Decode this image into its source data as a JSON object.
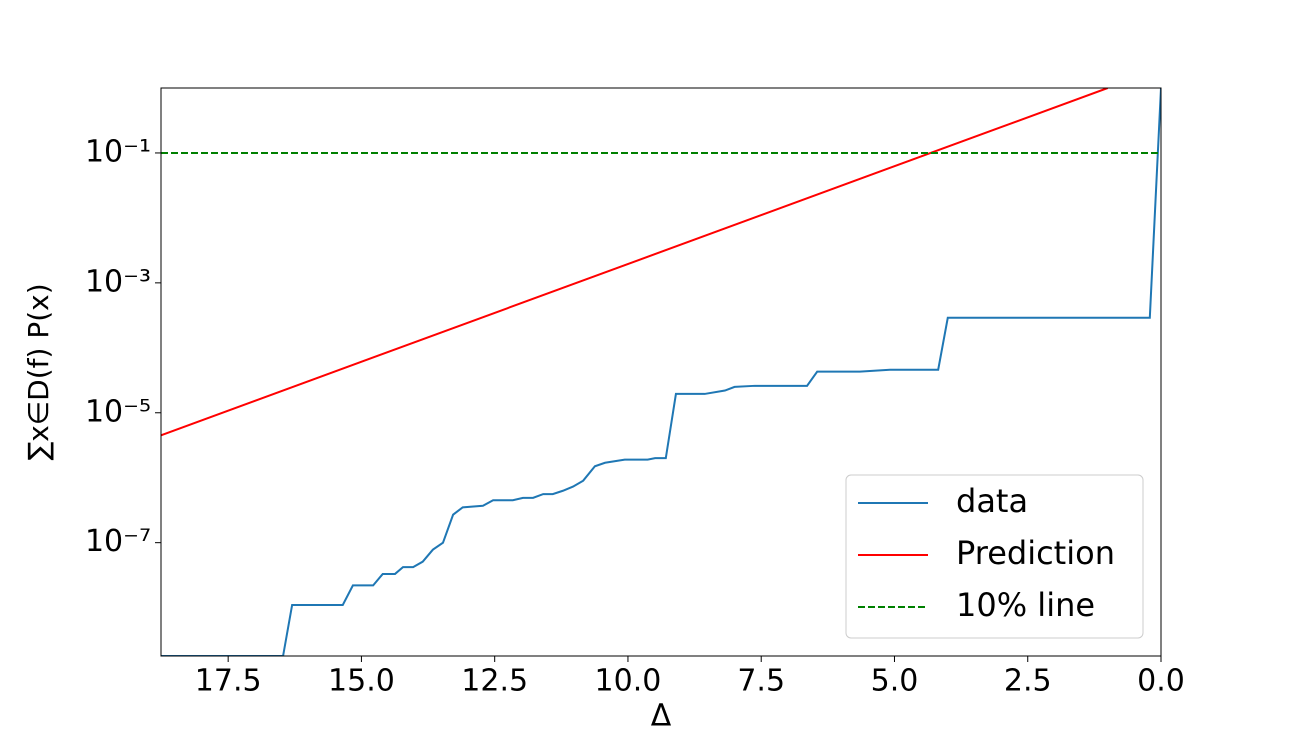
{
  "chart_data": {
    "type": "line",
    "x_label": "Δ",
    "y_label": "∑x∈D(f) P(x)",
    "log_y": true,
    "legend": "lower right",
    "xlim": [
      18.76,
      0
    ],
    "xticks": [
      17.5,
      {
        "value": 15,
        "label": "15.0"
      },
      12.5,
      {
        "value": 10,
        "label": "10.0"
      },
      7.5,
      {
        "value": 5,
        "label": "5.0"
      },
      2.5,
      {
        "value": 0,
        "label": "0.0"
      }
    ],
    "ylim": [
      1.8e-09,
      1
    ],
    "yticks": [
      {
        "value": 0.1,
        "label": "10⁻¹"
      },
      {
        "value": 0.001,
        "label": "10⁻³"
      },
      {
        "value": 1e-05,
        "label": "10⁻⁵"
      },
      {
        "value": 1e-07,
        "label": "10⁻⁷"
      }
    ],
    "series": [
      {
        "name": "data",
        "color": "#1f77b4",
        "linestyle": "solid",
        "x": [
          18.76,
          16.47,
          16.3,
          15.35,
          15.16,
          14.78,
          14.6,
          14.37,
          14.22,
          14.03,
          13.85,
          13.66,
          13.47,
          13.28,
          13.1,
          12.72,
          12.53,
          12.16,
          11.97,
          11.78,
          11.59,
          11.41,
          11.22,
          11.03,
          10.84,
          10.62,
          10.43,
          10.06,
          9.63,
          9.49,
          9.29,
          9.1,
          8.56,
          8.18,
          8.0,
          7.62,
          6.64,
          6.45,
          5.65,
          5.08,
          4.18,
          4.0,
          0.21,
          0
        ],
        "values": [
          1.8e-09,
          1.8e-09,
          1.1e-08,
          1.1e-08,
          2.2e-08,
          2.2e-08,
          3.3e-08,
          3.3e-08,
          4.2e-08,
          4.2e-08,
          5.1e-08,
          7.8e-08,
          1e-07,
          2.7e-07,
          3.5e-07,
          3.7e-07,
          4.5e-07,
          4.5e-07,
          4.9e-07,
          4.9e-07,
          5.6e-07,
          5.6e-07,
          6.3e-07,
          7.3e-07,
          9e-07,
          1.5e-06,
          1.7e-06,
          1.9e-06,
          1.9e-06,
          2e-06,
          2e-06,
          1.95e-05,
          1.95e-05,
          2.2e-05,
          2.5e-05,
          2.6e-05,
          2.6e-05,
          4.3e-05,
          4.3e-05,
          4.6e-05,
          4.6e-05,
          0.00029,
          0.00029,
          1.0
        ]
      },
      {
        "name": "Prediction",
        "color": "#ff0000",
        "linestyle": "solid",
        "x": [
          18.76,
          1.0
        ],
        "values": [
          4.5e-06,
          1.0
        ]
      },
      {
        "name": "10% line",
        "color": "#008000",
        "linestyle": "dashed",
        "x": [
          18.76,
          0
        ],
        "values": [
          0.1,
          0.1
        ]
      }
    ]
  }
}
